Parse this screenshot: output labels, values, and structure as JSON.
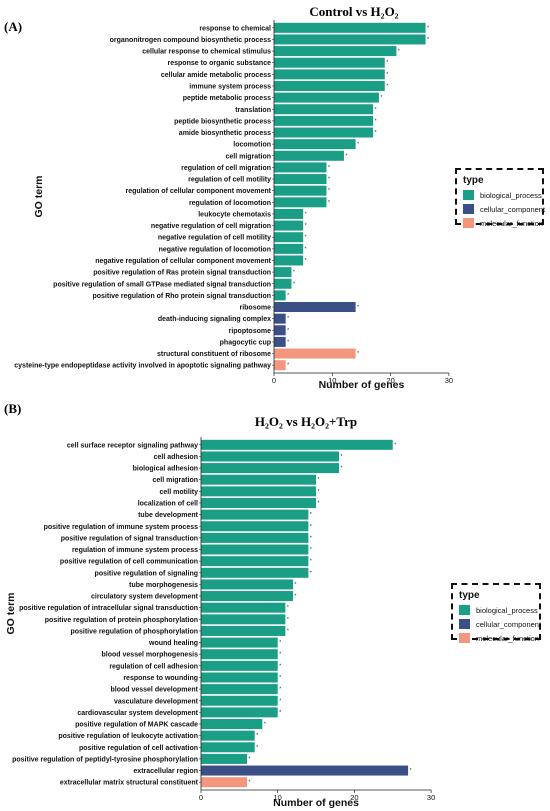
{
  "panels": [
    {
      "label": "(A)",
      "title": "Control vs H₂O₂"
    },
    {
      "label": "(B)",
      "title": "H₂O₂ vs H₂O₂+Trp"
    }
  ],
  "legend": {
    "title": "type",
    "items": [
      {
        "label": "biological_process",
        "color": "#1a9e85"
      },
      {
        "label": "cellular_component",
        "color": "#3b4f86"
      },
      {
        "label": "molecular_function",
        "color": "#f2977e"
      }
    ]
  },
  "chart_data": [
    {
      "type": "bar",
      "orientation": "horizontal",
      "title": "Control vs H₂O₂",
      "xlabel": "Number of genes",
      "ylabel": "GO term",
      "xlim": [
        0,
        30
      ],
      "xticks": [
        0,
        10,
        20,
        30
      ],
      "grid": false,
      "legend_position": "right",
      "categories": [
        "response to chemical",
        "organonitrogen compound biosynthetic process",
        "cellular response to chemical stimulus",
        "response to organic substance",
        "cellular amide metabolic process",
        "immune system process",
        "peptide metabolic process",
        "translation",
        "peptide biosynthetic process",
        "amide biosynthetic process",
        "locomotion",
        "cell migration",
        "regulation of cell migration",
        "regulation of cell motility",
        "regulation of cellular component movement",
        "regulation of locomotion",
        "leukocyte chemotaxis",
        "negative regulation of cell migration",
        "negative regulation of cell motility",
        "negative regulation of locomotion",
        "negative regulation of cellular component movement",
        "positive regulation of Ras protein signal transduction",
        "positive regulation of small GTPase mediated signal transduction",
        "positive regulation of Rho protein signal transduction",
        "ribosome",
        "death-inducing signaling complex",
        "ripoptosome",
        "phagocytic cup",
        "structural constituent of ribosome",
        "cysteine-type endopeptidase activity involved in apoptotic signaling pathway"
      ],
      "values": [
        26,
        26,
        21,
        19,
        19,
        19,
        18,
        17,
        17,
        17,
        14,
        12,
        9,
        9,
        9,
        9,
        5,
        5,
        5,
        5,
        5,
        3,
        3,
        2,
        14,
        2,
        2,
        2,
        14,
        2
      ],
      "types": [
        "biological_process",
        "biological_process",
        "biological_process",
        "biological_process",
        "biological_process",
        "biological_process",
        "biological_process",
        "biological_process",
        "biological_process",
        "biological_process",
        "biological_process",
        "biological_process",
        "biological_process",
        "biological_process",
        "biological_process",
        "biological_process",
        "biological_process",
        "biological_process",
        "biological_process",
        "biological_process",
        "biological_process",
        "biological_process",
        "biological_process",
        "biological_process",
        "cellular_component",
        "cellular_component",
        "cellular_component",
        "cellular_component",
        "molecular_function",
        "molecular_function"
      ],
      "significance": [
        "*",
        "*",
        "*",
        "*",
        "*",
        "*",
        "*",
        "*",
        "*",
        "*",
        "*",
        "*",
        "*",
        "*",
        "*",
        "*",
        "*",
        "*",
        "*",
        "*",
        "*",
        "*",
        "*",
        "*",
        "*",
        "*",
        "*",
        "*",
        "*",
        "*"
      ]
    },
    {
      "type": "bar",
      "orientation": "horizontal",
      "title": "H₂O₂ vs H₂O₂+Trp",
      "xlabel": "Number of genes",
      "ylabel": "GO term",
      "xlim": [
        0,
        30
      ],
      "xticks": [
        0,
        10,
        20,
        30
      ],
      "grid": false,
      "legend_position": "right",
      "categories": [
        "cell surface receptor signaling pathway",
        "cell adhesion",
        "biological adhesion",
        "cell migration",
        "cell motility",
        "localization of cell",
        "tube development",
        "positive regulation of immune system process",
        "positive regulation of signal transduction",
        "regulation of immune system process",
        "positive regulation of cell communication",
        "positive regulation of signaling",
        "tube morphogenesis",
        "circulatory system development",
        "positive regulation of intracellular signal transduction",
        "positive regulation of protein phosphorylation",
        "positive regulation of phosphorylation",
        "wound healing",
        "blood vessel morphogenesis",
        "regulation of cell adhesion",
        "response to wounding",
        "blood vessel development",
        "vasculature development",
        "cardiovascular system development",
        "positive regulation of MAPK cascade",
        "positive regulation of leukocyte activation",
        "positive regulation of cell activation",
        "positive regulation of peptidyl-tyrosine phosphorylation",
        "extracellular region",
        "extracellular matrix structural constituent"
      ],
      "values": [
        25,
        18,
        18,
        15,
        15,
        15,
        14,
        14,
        14,
        14,
        14,
        14,
        12,
        12,
        11,
        11,
        11,
        10,
        10,
        10,
        10,
        10,
        10,
        10,
        8,
        7,
        7,
        6,
        27,
        6
      ],
      "types": [
        "biological_process",
        "biological_process",
        "biological_process",
        "biological_process",
        "biological_process",
        "biological_process",
        "biological_process",
        "biological_process",
        "biological_process",
        "biological_process",
        "biological_process",
        "biological_process",
        "biological_process",
        "biological_process",
        "biological_process",
        "biological_process",
        "biological_process",
        "biological_process",
        "biological_process",
        "biological_process",
        "biological_process",
        "biological_process",
        "biological_process",
        "biological_process",
        "biological_process",
        "biological_process",
        "biological_process",
        "biological_process",
        "cellular_component",
        "molecular_function"
      ],
      "significance": [
        "*",
        "*",
        "*",
        "*",
        "*",
        "*",
        "*",
        "*",
        "*",
        "*",
        "*",
        "*",
        "*",
        "*",
        "*",
        "*",
        "*",
        "*",
        "*",
        "*",
        "*",
        "*",
        "*",
        "*",
        "*",
        "*",
        "*",
        "*",
        "*",
        "*"
      ]
    }
  ]
}
